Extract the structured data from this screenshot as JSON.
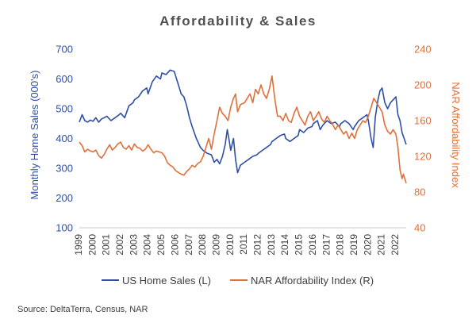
{
  "chart_data": {
    "type": "line",
    "title": "Affordability & Sales",
    "source": "Source: DeltaTerra, Census, NAR",
    "ylabel_left": "Monthly Home Sales (000's)",
    "ylabel_right": "NAR Affordability Index",
    "ylim_left": [
      100,
      700
    ],
    "ylim_right": [
      40,
      240
    ],
    "yticks_left": [
      100,
      200,
      300,
      400,
      500,
      600,
      700
    ],
    "yticks_right": [
      40,
      80,
      120,
      160,
      200,
      240
    ],
    "xlim": [
      1999,
      2022.75
    ],
    "x_tick_labels": [
      "1999",
      "2000",
      "2001",
      "2002",
      "2003",
      "2004",
      "2005",
      "2006",
      "2007",
      "2008",
      "2009",
      "2010",
      "2011",
      "2012",
      "2013",
      "2014",
      "2015",
      "2016",
      "2017",
      "2018",
      "2019",
      "2020",
      "2021",
      "2022"
    ],
    "grid": false,
    "legend_position": "bottom",
    "series": [
      {
        "name": "US Home Sales (L)",
        "axis": "left",
        "color": "#2E4FA5",
        "points": [
          [
            1999.0,
            455
          ],
          [
            1999.2,
            480
          ],
          [
            1999.4,
            460
          ],
          [
            1999.6,
            455
          ],
          [
            1999.8,
            462
          ],
          [
            2000.0,
            458
          ],
          [
            2000.2,
            470
          ],
          [
            2000.4,
            455
          ],
          [
            2000.6,
            465
          ],
          [
            2000.8,
            470
          ],
          [
            2001.0,
            475
          ],
          [
            2001.3,
            460
          ],
          [
            2001.6,
            470
          ],
          [
            2001.9,
            480
          ],
          [
            2002.0,
            485
          ],
          [
            2002.3,
            470
          ],
          [
            2002.6,
            510
          ],
          [
            2002.9,
            520
          ],
          [
            2003.0,
            530
          ],
          [
            2003.3,
            540
          ],
          [
            2003.6,
            560
          ],
          [
            2003.9,
            570
          ],
          [
            2004.0,
            550
          ],
          [
            2004.3,
            590
          ],
          [
            2004.6,
            610
          ],
          [
            2004.9,
            600
          ],
          [
            2005.0,
            620
          ],
          [
            2005.3,
            615
          ],
          [
            2005.6,
            630
          ],
          [
            2005.9,
            625
          ],
          [
            2006.0,
            610
          ],
          [
            2006.2,
            580
          ],
          [
            2006.4,
            550
          ],
          [
            2006.6,
            540
          ],
          [
            2006.8,
            510
          ],
          [
            2007.0,
            470
          ],
          [
            2007.2,
            440
          ],
          [
            2007.5,
            400
          ],
          [
            2007.8,
            370
          ],
          [
            2008.0,
            360
          ],
          [
            2008.3,
            350
          ],
          [
            2008.6,
            345
          ],
          [
            2008.8,
            320
          ],
          [
            2009.0,
            330
          ],
          [
            2009.2,
            315
          ],
          [
            2009.4,
            340
          ],
          [
            2009.6,
            380
          ],
          [
            2009.75,
            430
          ],
          [
            2009.9,
            390
          ],
          [
            2010.0,
            360
          ],
          [
            2010.2,
            400
          ],
          [
            2010.35,
            330
          ],
          [
            2010.5,
            285
          ],
          [
            2010.7,
            310
          ],
          [
            2011.0,
            320
          ],
          [
            2011.3,
            330
          ],
          [
            2011.6,
            340
          ],
          [
            2011.9,
            345
          ],
          [
            2012.0,
            350
          ],
          [
            2012.3,
            360
          ],
          [
            2012.6,
            370
          ],
          [
            2012.9,
            380
          ],
          [
            2013.0,
            390
          ],
          [
            2013.3,
            400
          ],
          [
            2013.6,
            410
          ],
          [
            2013.9,
            415
          ],
          [
            2014.0,
            400
          ],
          [
            2014.3,
            390
          ],
          [
            2014.6,
            400
          ],
          [
            2014.9,
            410
          ],
          [
            2015.0,
            430
          ],
          [
            2015.3,
            420
          ],
          [
            2015.6,
            435
          ],
          [
            2015.9,
            440
          ],
          [
            2016.0,
            450
          ],
          [
            2016.3,
            460
          ],
          [
            2016.5,
            430
          ],
          [
            2016.7,
            445
          ],
          [
            2016.9,
            455
          ],
          [
            2017.0,
            460
          ],
          [
            2017.3,
            450
          ],
          [
            2017.6,
            455
          ],
          [
            2017.9,
            440
          ],
          [
            2018.0,
            450
          ],
          [
            2018.3,
            460
          ],
          [
            2018.6,
            450
          ],
          [
            2018.9,
            430
          ],
          [
            2019.0,
            440
          ],
          [
            2019.3,
            460
          ],
          [
            2019.6,
            470
          ],
          [
            2019.9,
            480
          ],
          [
            2020.0,
            460
          ],
          [
            2020.2,
            400
          ],
          [
            2020.35,
            370
          ],
          [
            2020.5,
            470
          ],
          [
            2020.7,
            530
          ],
          [
            2020.85,
            560
          ],
          [
            2021.0,
            570
          ],
          [
            2021.2,
            520
          ],
          [
            2021.4,
            500
          ],
          [
            2021.6,
            520
          ],
          [
            2021.8,
            530
          ],
          [
            2022.0,
            540
          ],
          [
            2022.15,
            480
          ],
          [
            2022.3,
            460
          ],
          [
            2022.45,
            420
          ],
          [
            2022.6,
            400
          ],
          [
            2022.75,
            380
          ]
        ]
      },
      {
        "name": "NAR Affordability Index (R)",
        "axis": "right",
        "color": "#E0703A",
        "points": [
          [
            1999.0,
            136
          ],
          [
            1999.2,
            132
          ],
          [
            1999.4,
            125
          ],
          [
            1999.6,
            128
          ],
          [
            1999.8,
            126
          ],
          [
            2000.0,
            125
          ],
          [
            2000.2,
            127
          ],
          [
            2000.4,
            121
          ],
          [
            2000.6,
            118
          ],
          [
            2000.8,
            122
          ],
          [
            2001.0,
            128
          ],
          [
            2001.2,
            133
          ],
          [
            2001.4,
            127
          ],
          [
            2001.6,
            130
          ],
          [
            2001.8,
            134
          ],
          [
            2002.0,
            136
          ],
          [
            2002.2,
            130
          ],
          [
            2002.4,
            128
          ],
          [
            2002.6,
            132
          ],
          [
            2002.8,
            127
          ],
          [
            2003.0,
            134
          ],
          [
            2003.2,
            130
          ],
          [
            2003.4,
            129
          ],
          [
            2003.6,
            126
          ],
          [
            2003.8,
            128
          ],
          [
            2004.0,
            133
          ],
          [
            2004.2,
            128
          ],
          [
            2004.4,
            124
          ],
          [
            2004.6,
            126
          ],
          [
            2004.8,
            125
          ],
          [
            2005.0,
            124
          ],
          [
            2005.2,
            120
          ],
          [
            2005.4,
            113
          ],
          [
            2005.6,
            110
          ],
          [
            2005.8,
            108
          ],
          [
            2006.0,
            104
          ],
          [
            2006.2,
            102
          ],
          [
            2006.4,
            100
          ],
          [
            2006.6,
            99
          ],
          [
            2006.8,
            103
          ],
          [
            2007.0,
            106
          ],
          [
            2007.2,
            110
          ],
          [
            2007.4,
            108
          ],
          [
            2007.6,
            112
          ],
          [
            2007.8,
            114
          ],
          [
            2008.0,
            120
          ],
          [
            2008.2,
            130
          ],
          [
            2008.4,
            140
          ],
          [
            2008.6,
            128
          ],
          [
            2008.8,
            145
          ],
          [
            2009.0,
            160
          ],
          [
            2009.2,
            175
          ],
          [
            2009.4,
            168
          ],
          [
            2009.6,
            165
          ],
          [
            2009.8,
            160
          ],
          [
            2010.0,
            175
          ],
          [
            2010.2,
            185
          ],
          [
            2010.35,
            190
          ],
          [
            2010.5,
            170
          ],
          [
            2010.7,
            178
          ],
          [
            2011.0,
            180
          ],
          [
            2011.2,
            185
          ],
          [
            2011.4,
            190
          ],
          [
            2011.6,
            180
          ],
          [
            2011.8,
            195
          ],
          [
            2012.0,
            190
          ],
          [
            2012.2,
            200
          ],
          [
            2012.4,
            190
          ],
          [
            2012.6,
            185
          ],
          [
            2012.8,
            195
          ],
          [
            2013.0,
            210
          ],
          [
            2013.2,
            185
          ],
          [
            2013.4,
            165
          ],
          [
            2013.6,
            165
          ],
          [
            2013.8,
            160
          ],
          [
            2014.0,
            168
          ],
          [
            2014.2,
            160
          ],
          [
            2014.4,
            158
          ],
          [
            2014.6,
            168
          ],
          [
            2014.8,
            175
          ],
          [
            2015.0,
            165
          ],
          [
            2015.2,
            160
          ],
          [
            2015.4,
            155
          ],
          [
            2015.6,
            165
          ],
          [
            2015.8,
            170
          ],
          [
            2016.0,
            160
          ],
          [
            2016.2,
            165
          ],
          [
            2016.4,
            170
          ],
          [
            2016.6,
            162
          ],
          [
            2016.8,
            158
          ],
          [
            2017.0,
            165
          ],
          [
            2017.2,
            160
          ],
          [
            2017.4,
            156
          ],
          [
            2017.6,
            150
          ],
          [
            2017.8,
            155
          ],
          [
            2018.0,
            150
          ],
          [
            2018.2,
            145
          ],
          [
            2018.4,
            148
          ],
          [
            2018.6,
            140
          ],
          [
            2018.8,
            146
          ],
          [
            2019.0,
            140
          ],
          [
            2019.2,
            150
          ],
          [
            2019.4,
            155
          ],
          [
            2019.6,
            160
          ],
          [
            2019.8,
            158
          ],
          [
            2020.0,
            165
          ],
          [
            2020.2,
            175
          ],
          [
            2020.4,
            185
          ],
          [
            2020.6,
            180
          ],
          [
            2020.8,
            175
          ],
          [
            2021.0,
            170
          ],
          [
            2021.2,
            155
          ],
          [
            2021.4,
            148
          ],
          [
            2021.6,
            145
          ],
          [
            2021.8,
            150
          ],
          [
            2022.0,
            145
          ],
          [
            2022.15,
            130
          ],
          [
            2022.3,
            105
          ],
          [
            2022.45,
            95
          ],
          [
            2022.55,
            100
          ],
          [
            2022.75,
            90
          ]
        ]
      }
    ]
  }
}
